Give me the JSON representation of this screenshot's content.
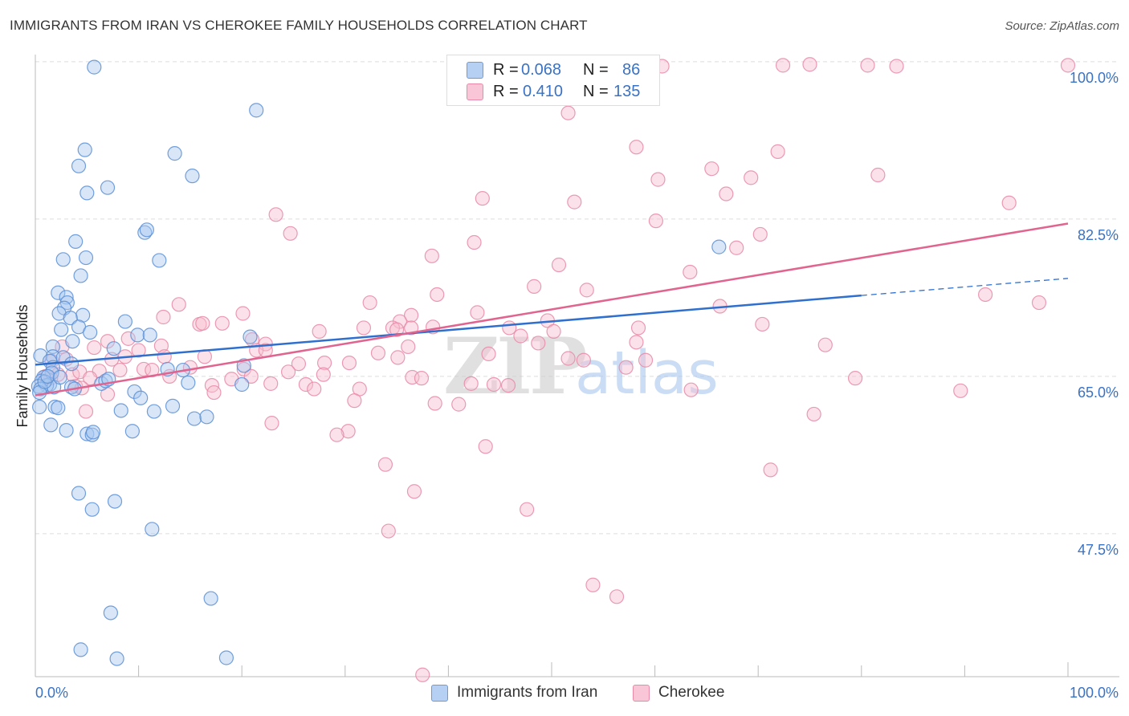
{
  "title": "IMMIGRANTS FROM IRAN VS CHEROKEE FAMILY HOUSEHOLDS CORRELATION CHART",
  "source": "Source: ZipAtlas.com",
  "watermark": {
    "zip": "ZIP",
    "atlas": "atlas"
  },
  "legend": {
    "iran": {
      "r_label": "R =",
      "r_value": "0.068",
      "n_label": "N =",
      "n_value": "86"
    },
    "cherokee": {
      "r_label": "R =",
      "r_value": "0.410",
      "n_label": "N =",
      "n_value": "135"
    }
  },
  "colors": {
    "iran_fill": "#a9c8f0",
    "iran_stroke": "#5b8fd6",
    "iran_line": "#2f6fce",
    "cherokee_fill": "#f7bfd0",
    "cherokee_stroke": "#e88aa7",
    "cherokee_line": "#e0648f",
    "tick_label": "#3a72c4",
    "grid": "#dddddd"
  },
  "chart_data": {
    "type": "scatter",
    "title": "IMMIGRANTS FROM IRAN VS CHEROKEE FAMILY HOUSEHOLDS CORRELATION CHART",
    "xlabel": "",
    "ylabel": "Family Households",
    "xlim": [
      0,
      100
    ],
    "ylim": [
      31.6,
      102.4
    ],
    "x_tick_labels": [
      "0.0%",
      "100.0%"
    ],
    "y_ticks": [
      47.5,
      65.0,
      82.5,
      100.0
    ],
    "y_tick_labels": [
      "47.5%",
      "65.0%",
      "82.5%",
      "100.0%"
    ],
    "grid": true,
    "series": [
      {
        "name": "Immigrants from Iran",
        "trend": {
          "x": [
            0,
            80
          ],
          "y": [
            66.3,
            74.0
          ],
          "dashed_to": [
            100,
            75.9
          ]
        },
        "points": [
          [
            5.7,
            99.4
          ],
          [
            21.4,
            94.6
          ],
          [
            4.8,
            90.2
          ],
          [
            13.5,
            89.8
          ],
          [
            4.2,
            88.4
          ],
          [
            15.2,
            87.3
          ],
          [
            7.0,
            86.0
          ],
          [
            5.0,
            85.4
          ],
          [
            10.6,
            81.0
          ],
          [
            10.8,
            81.3
          ],
          [
            3.9,
            80.0
          ],
          [
            2.7,
            78.0
          ],
          [
            12.0,
            77.9
          ],
          [
            4.9,
            78.2
          ],
          [
            66.2,
            79.4
          ],
          [
            4.4,
            76.2
          ],
          [
            2.2,
            74.3
          ],
          [
            3.0,
            73.8
          ],
          [
            3.1,
            73.2
          ],
          [
            2.8,
            72.6
          ],
          [
            2.3,
            72.0
          ],
          [
            4.6,
            71.8
          ],
          [
            3.4,
            71.5
          ],
          [
            4.2,
            70.5
          ],
          [
            8.7,
            71.1
          ],
          [
            2.5,
            70.2
          ],
          [
            5.3,
            69.9
          ],
          [
            9.9,
            69.6
          ],
          [
            11.1,
            69.6
          ],
          [
            20.8,
            69.4
          ],
          [
            3.6,
            68.9
          ],
          [
            1.7,
            68.3
          ],
          [
            7.6,
            68.1
          ],
          [
            0.5,
            67.3
          ],
          [
            1.7,
            67.2
          ],
          [
            2.7,
            67.1
          ],
          [
            1.4,
            66.7
          ],
          [
            1.7,
            66.0
          ],
          [
            3.5,
            66.4
          ],
          [
            12.8,
            65.8
          ],
          [
            20.2,
            66.2
          ],
          [
            14.3,
            65.7
          ],
          [
            1.6,
            65.4
          ],
          [
            0.8,
            64.9
          ],
          [
            0.6,
            64.5
          ],
          [
            1.4,
            64.1
          ],
          [
            1.1,
            64.0
          ],
          [
            0.3,
            63.9
          ],
          [
            1.8,
            63.8
          ],
          [
            0.5,
            63.6
          ],
          [
            0.4,
            63.2
          ],
          [
            3.5,
            63.8
          ],
          [
            6.4,
            64.2
          ],
          [
            6.8,
            64.5
          ],
          [
            7.1,
            64.7
          ],
          [
            14.8,
            64.3
          ],
          [
            20.0,
            64.1
          ],
          [
            9.6,
            63.3
          ],
          [
            10.2,
            62.6
          ],
          [
            0.4,
            61.6
          ],
          [
            1.9,
            61.6
          ],
          [
            2.2,
            61.5
          ],
          [
            8.3,
            61.2
          ],
          [
            11.5,
            61.1
          ],
          [
            13.3,
            61.7
          ],
          [
            15.4,
            60.3
          ],
          [
            16.6,
            60.5
          ],
          [
            1.5,
            59.6
          ],
          [
            3.0,
            59.0
          ],
          [
            5.0,
            58.6
          ],
          [
            5.5,
            58.5
          ],
          [
            5.6,
            58.8
          ],
          [
            9.4,
            58.9
          ],
          [
            4.2,
            52.0
          ],
          [
            5.5,
            50.2
          ],
          [
            7.7,
            51.1
          ],
          [
            11.3,
            48.0
          ],
          [
            17.0,
            40.3
          ],
          [
            7.3,
            38.7
          ],
          [
            4.4,
            34.6
          ],
          [
            7.9,
            33.6
          ],
          [
            18.5,
            33.7
          ],
          [
            0.9,
            64.4
          ],
          [
            1.2,
            65.0
          ],
          [
            2.4,
            64.9
          ],
          [
            3.8,
            63.6
          ]
        ]
      },
      {
        "name": "Cherokee",
        "trend": {
          "x": [
            0,
            100
          ],
          "y": [
            62.9,
            82.0
          ]
        },
        "points": [
          [
            60.7,
            99.5
          ],
          [
            75.0,
            99.7
          ],
          [
            72.4,
            99.6
          ],
          [
            80.6,
            99.6
          ],
          [
            83.4,
            99.5
          ],
          [
            100.0,
            99.6
          ],
          [
            51.6,
            94.3
          ],
          [
            58.2,
            90.5
          ],
          [
            71.9,
            90.0
          ],
          [
            65.5,
            88.1
          ],
          [
            81.6,
            87.4
          ],
          [
            60.3,
            86.9
          ],
          [
            69.3,
            87.1
          ],
          [
            43.3,
            84.8
          ],
          [
            52.2,
            84.4
          ],
          [
            66.9,
            85.3
          ],
          [
            94.3,
            84.3
          ],
          [
            23.3,
            83.0
          ],
          [
            60.1,
            82.3
          ],
          [
            24.7,
            80.9
          ],
          [
            70.2,
            80.8
          ],
          [
            42.5,
            79.9
          ],
          [
            67.9,
            79.3
          ],
          [
            38.4,
            78.4
          ],
          [
            50.7,
            77.4
          ],
          [
            63.4,
            76.6
          ],
          [
            48.3,
            75.0
          ],
          [
            53.4,
            74.6
          ],
          [
            38.9,
            74.1
          ],
          [
            92.0,
            74.1
          ],
          [
            97.2,
            73.2
          ],
          [
            32.4,
            73.2
          ],
          [
            13.9,
            73.0
          ],
          [
            66.3,
            72.8
          ],
          [
            42.8,
            72.1
          ],
          [
            20.1,
            72.0
          ],
          [
            36.4,
            71.8
          ],
          [
            12.4,
            71.6
          ],
          [
            35.3,
            71.1
          ],
          [
            49.6,
            71.2
          ],
          [
            18.1,
            70.9
          ],
          [
            15.9,
            70.8
          ],
          [
            16.2,
            70.9
          ],
          [
            38.5,
            70.5
          ],
          [
            70.4,
            70.8
          ],
          [
            31.8,
            70.4
          ],
          [
            34.6,
            70.4
          ],
          [
            35.0,
            70.2
          ],
          [
            36.4,
            70.4
          ],
          [
            45.9,
            70.4
          ],
          [
            58.4,
            70.4
          ],
          [
            27.5,
            70.0
          ],
          [
            50.2,
            70.0
          ],
          [
            9.0,
            69.2
          ],
          [
            47.0,
            69.5
          ],
          [
            21.0,
            69.1
          ],
          [
            7.0,
            68.9
          ],
          [
            58.2,
            68.8
          ],
          [
            12.2,
            68.4
          ],
          [
            22.3,
            68.6
          ],
          [
            48.7,
            68.7
          ],
          [
            2.6,
            68.3
          ],
          [
            5.7,
            68.2
          ],
          [
            36.1,
            68.3
          ],
          [
            76.5,
            68.5
          ],
          [
            10.0,
            67.9
          ],
          [
            21.4,
            67.9
          ],
          [
            22.3,
            67.9
          ],
          [
            33.2,
            67.6
          ],
          [
            43.9,
            67.5
          ],
          [
            12.5,
            67.2
          ],
          [
            16.4,
            67.2
          ],
          [
            35.1,
            67.1
          ],
          [
            51.6,
            67.0
          ],
          [
            53.1,
            66.8
          ],
          [
            59.1,
            66.8
          ],
          [
            25.5,
            66.4
          ],
          [
            28.0,
            66.5
          ],
          [
            30.4,
            66.5
          ],
          [
            8.7,
            67.2
          ],
          [
            7.4,
            66.9
          ],
          [
            3.0,
            66.9
          ],
          [
            1.6,
            66.7
          ],
          [
            57.2,
            66.0
          ],
          [
            15.0,
            66.0
          ],
          [
            20.2,
            65.8
          ],
          [
            10.5,
            65.8
          ],
          [
            8.2,
            65.7
          ],
          [
            6.2,
            65.6
          ],
          [
            2.2,
            65.2
          ],
          [
            3.6,
            65.2
          ],
          [
            4.3,
            65.5
          ],
          [
            11.3,
            65.7
          ],
          [
            24.5,
            65.5
          ],
          [
            27.9,
            65.2
          ],
          [
            20.9,
            65.0
          ],
          [
            1.0,
            65.0
          ],
          [
            1.5,
            64.8
          ],
          [
            5.3,
            64.8
          ],
          [
            13.0,
            65.0
          ],
          [
            19.0,
            64.7
          ],
          [
            36.5,
            64.9
          ],
          [
            37.4,
            64.8
          ],
          [
            79.4,
            64.8
          ],
          [
            26.2,
            64.1
          ],
          [
            22.8,
            64.2
          ],
          [
            17.1,
            64.0
          ],
          [
            42.2,
            64.2
          ],
          [
            44.4,
            64.1
          ],
          [
            45.8,
            64.0
          ],
          [
            3.9,
            63.9
          ],
          [
            4.5,
            63.7
          ],
          [
            27.0,
            63.6
          ],
          [
            31.4,
            63.6
          ],
          [
            17.3,
            63.2
          ],
          [
            7.0,
            63.0
          ],
          [
            30.9,
            62.3
          ],
          [
            38.7,
            62.0
          ],
          [
            41.0,
            61.9
          ],
          [
            89.6,
            63.4
          ],
          [
            4.9,
            61.1
          ],
          [
            75.4,
            60.8
          ],
          [
            22.9,
            59.8
          ],
          [
            30.3,
            58.9
          ],
          [
            29.2,
            58.5
          ],
          [
            43.6,
            57.2
          ],
          [
            33.9,
            55.2
          ],
          [
            71.2,
            54.6
          ],
          [
            36.7,
            52.2
          ],
          [
            47.6,
            50.2
          ],
          [
            34.2,
            47.8
          ],
          [
            54.0,
            41.8
          ],
          [
            56.3,
            40.5
          ],
          [
            37.5,
            31.8
          ],
          [
            63.5,
            63.5
          ]
        ]
      }
    ]
  },
  "bottom_legend": {
    "iran_label": "Immigrants from Iran",
    "cherokee_label": "Cherokee"
  }
}
